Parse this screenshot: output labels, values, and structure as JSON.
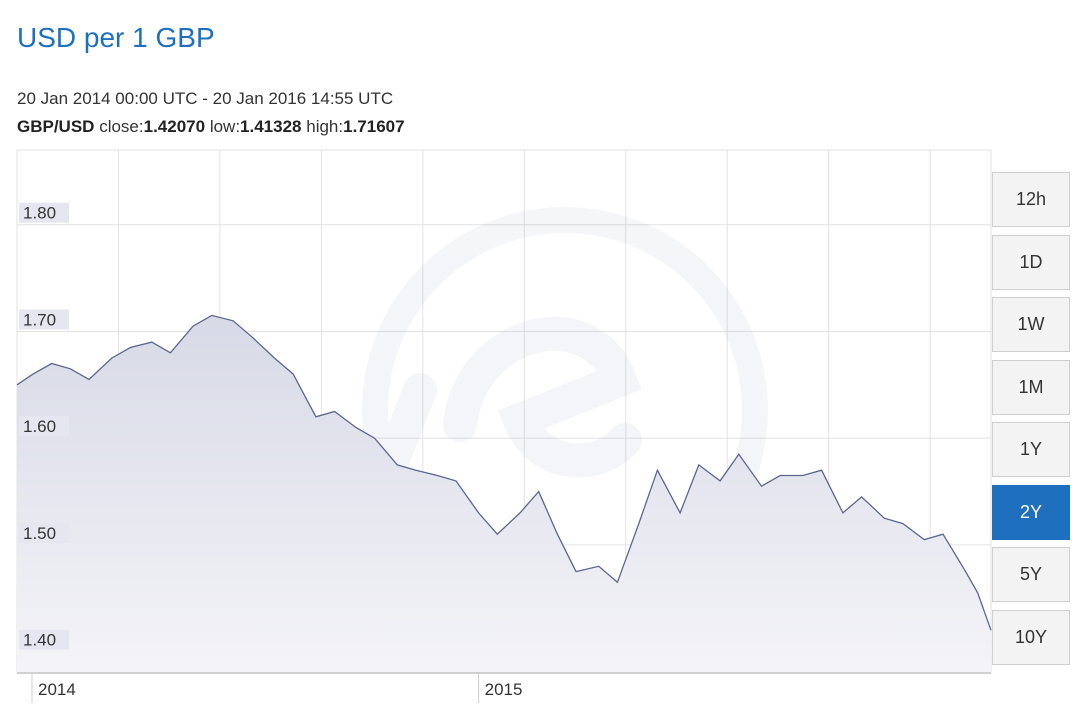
{
  "header": {
    "title": "USD per 1 GBP",
    "date_range": "20 Jan 2014 00:00 UTC - 20 Jan 2016 14:55 UTC",
    "pair": "GBP/USD",
    "close_label": "close:",
    "close_value": "1.42070",
    "low_label": "low:",
    "low_value": "1.41328",
    "high_label": "high:",
    "high_value": "1.71607"
  },
  "range_buttons": [
    {
      "label": "12h",
      "active": false
    },
    {
      "label": "1D",
      "active": false
    },
    {
      "label": "1W",
      "active": false
    },
    {
      "label": "1M",
      "active": false
    },
    {
      "label": "1Y",
      "active": false
    },
    {
      "label": "2Y",
      "active": true
    },
    {
      "label": "5Y",
      "active": false
    },
    {
      "label": "10Y",
      "active": false
    }
  ],
  "colors": {
    "line": "#5b6690",
    "area_top": "#d7d9e6",
    "area_bottom": "#f4f4f8",
    "grid": "#e2e2e2",
    "accent": "#1f6fbf",
    "tick_label_bg": "#e6e6f0"
  },
  "chart_data": {
    "type": "area",
    "title": "USD per 1 GBP",
    "xlabel": "",
    "ylabel": "",
    "ylim": [
      1.38,
      1.87
    ],
    "xlim": [
      "2014-01-20",
      "2016-01-20"
    ],
    "yticks": [
      "1.40",
      "1.50",
      "1.60",
      "1.70",
      "1.80"
    ],
    "xtick_labels": [
      {
        "label": "2014",
        "date": "2014-01-01"
      },
      {
        "label": "2015",
        "date": "2015-01-01"
      }
    ],
    "grid": true,
    "legend": "none",
    "series": [
      {
        "x": [
          "2014-01-20",
          "2014-02-01",
          "2014-02-15",
          "2014-03-01",
          "2014-03-15",
          "2014-04-01",
          "2014-04-15",
          "2014-05-01",
          "2014-05-15",
          "2014-06-01",
          "2014-06-15",
          "2014-07-01",
          "2014-07-15",
          "2014-08-01",
          "2014-08-15",
          "2014-09-01",
          "2014-09-15",
          "2014-10-01",
          "2014-10-15",
          "2014-11-01",
          "2014-11-15",
          "2014-12-01",
          "2014-12-15",
          "2015-01-01",
          "2015-01-15",
          "2015-02-01",
          "2015-02-15",
          "2015-03-01",
          "2015-03-15",
          "2015-04-01",
          "2015-04-15",
          "2015-05-01",
          "2015-05-15",
          "2015-06-01",
          "2015-06-15",
          "2015-07-01",
          "2015-07-15",
          "2015-08-01",
          "2015-08-15",
          "2015-09-01",
          "2015-09-15",
          "2015-10-01",
          "2015-10-15",
          "2015-11-01",
          "2015-11-15",
          "2015-12-01",
          "2015-12-15",
          "2016-01-01",
          "2016-01-10",
          "2016-01-20"
        ],
        "values": [
          1.65,
          1.66,
          1.67,
          1.665,
          1.655,
          1.675,
          1.685,
          1.69,
          1.68,
          1.705,
          1.715,
          1.71,
          1.695,
          1.675,
          1.66,
          1.62,
          1.625,
          1.61,
          1.6,
          1.575,
          1.57,
          1.565,
          1.56,
          1.53,
          1.51,
          1.53,
          1.55,
          1.51,
          1.475,
          1.48,
          1.465,
          1.52,
          1.57,
          1.53,
          1.575,
          1.56,
          1.585,
          1.555,
          1.565,
          1.565,
          1.57,
          1.53,
          1.545,
          1.525,
          1.52,
          1.505,
          1.51,
          1.475,
          1.455,
          1.42
        ]
      }
    ]
  }
}
